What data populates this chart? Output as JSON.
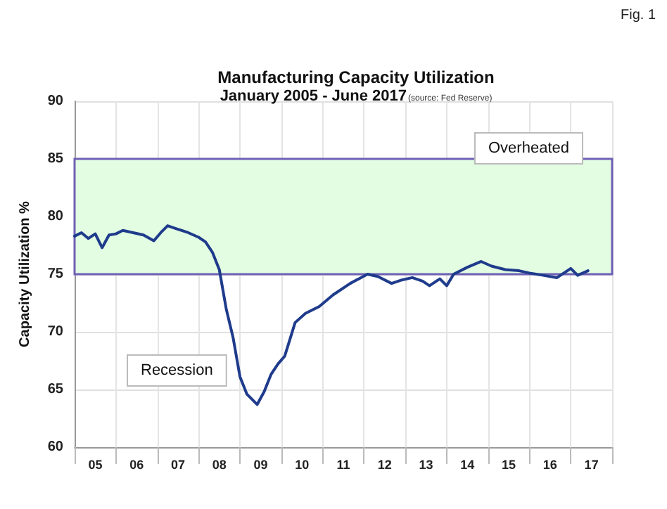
{
  "chart_data": {
    "type": "line",
    "title": "Manufacturing Capacity Utilization",
    "subtitle": "January 2005 - June 2017",
    "ylabel": "Capacity Utilization %",
    "annotations": [
      "Fig. 1",
      "(source: Fed Reserve)",
      "Overheated",
      "Recession"
    ],
    "x": [
      "2005-01",
      "2005-03",
      "2005-05",
      "2005-07",
      "2005-09",
      "2005-11",
      "2006-01",
      "2006-03",
      "2006-06",
      "2006-09",
      "2006-12",
      "2007-02",
      "2007-04",
      "2007-07",
      "2007-10",
      "2008-01",
      "2008-03",
      "2008-05",
      "2008-07",
      "2008-09",
      "2008-11",
      "2009-01",
      "2009-03",
      "2009-06",
      "2009-08",
      "2009-10",
      "2009-12",
      "2010-02",
      "2010-05",
      "2010-08",
      "2010-12",
      "2011-04",
      "2011-09",
      "2012-02",
      "2012-05",
      "2012-09",
      "2012-12",
      "2013-03",
      "2013-06",
      "2013-08",
      "2013-11",
      "2014-01",
      "2014-03",
      "2014-07",
      "2014-11",
      "2015-02",
      "2015-06",
      "2015-10",
      "2016-01",
      "2016-05",
      "2016-09",
      "2017-01",
      "2017-03",
      "2017-06"
    ],
    "series": [
      {
        "color": "#1f3b8c",
        "values": [
          78.3,
          78.6,
          78.1,
          78.5,
          77.3,
          78.4,
          78.5,
          78.8,
          78.6,
          78.4,
          77.9,
          78.6,
          79.2,
          78.9,
          78.6,
          78.2,
          77.8,
          76.9,
          75.4,
          72.0,
          69.5,
          66.1,
          64.6,
          63.7,
          64.8,
          66.3,
          67.2,
          67.9,
          70.8,
          71.6,
          72.2,
          73.2,
          74.2,
          75.0,
          74.8,
          74.2,
          74.5,
          74.7,
          74.4,
          74.0,
          74.6,
          74.0,
          75.0,
          75.6,
          76.1,
          75.7,
          75.4,
          75.3,
          75.1,
          74.9,
          74.7,
          75.5,
          74.9,
          75.3
        ]
      }
    ],
    "ylim": [
      60,
      90
    ],
    "yticks": [
      60,
      65,
      70,
      75,
      80,
      85,
      90
    ],
    "xlim": [
      "2005-01",
      "2018-01"
    ],
    "xticks": [
      {
        "value": "2005-01",
        "label": null
      },
      {
        "value": "2005-07",
        "label": "05"
      },
      {
        "value": "2006-01",
        "label": null
      },
      {
        "value": "2006-07",
        "label": "06"
      },
      {
        "value": "2007-01",
        "label": null
      },
      {
        "value": "2007-07",
        "label": "07"
      },
      {
        "value": "2008-01",
        "label": null
      },
      {
        "value": "2008-07",
        "label": "08"
      },
      {
        "value": "2009-01",
        "label": null
      },
      {
        "value": "2009-07",
        "label": "09"
      },
      {
        "value": "2010-01",
        "label": null
      },
      {
        "value": "2010-07",
        "label": "10"
      },
      {
        "value": "2011-01",
        "label": null
      },
      {
        "value": "2011-07",
        "label": "11"
      },
      {
        "value": "2012-01",
        "label": null
      },
      {
        "value": "2012-07",
        "label": "12"
      },
      {
        "value": "2013-01",
        "label": null
      },
      {
        "value": "2013-07",
        "label": "13"
      },
      {
        "value": "2014-01",
        "label": null
      },
      {
        "value": "2014-07",
        "label": "14"
      },
      {
        "value": "2015-01",
        "label": null
      },
      {
        "value": "2015-07",
        "label": "15"
      },
      {
        "value": "2016-01",
        "label": null
      },
      {
        "value": "2016-07",
        "label": "16"
      },
      {
        "value": "2017-01",
        "label": null
      },
      {
        "value": "2017-07",
        "label": "17"
      },
      {
        "value": "2018-01",
        "label": null
      }
    ],
    "bands": [
      {
        "axis": "y",
        "from": 75,
        "to": 85,
        "color": "#e2fde2"
      }
    ],
    "grid": true,
    "marker": "none",
    "line_style": "solid"
  }
}
